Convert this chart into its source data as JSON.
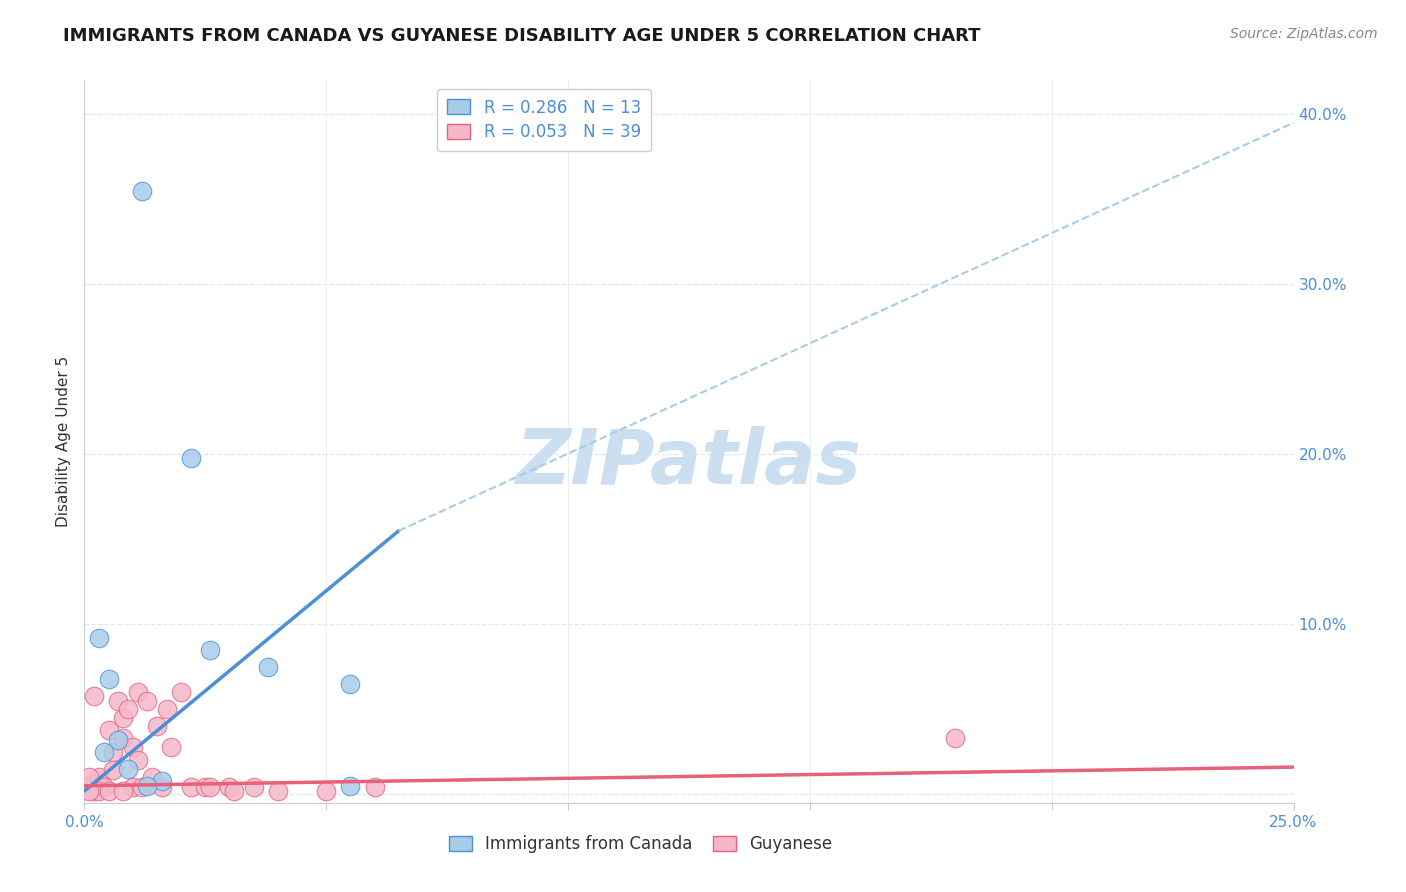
{
  "title": "IMMIGRANTS FROM CANADA VS GUYANESE DISABILITY AGE UNDER 5 CORRELATION CHART",
  "source": "Source: ZipAtlas.com",
  "xlabel_label": "Immigrants from Canada",
  "ylabel_label": "Disability Age Under 5",
  "xlim": [
    0.0,
    0.25
  ],
  "ylim": [
    -0.005,
    0.42
  ],
  "blue_R": "0.286",
  "blue_N": "13",
  "pink_R": "0.053",
  "pink_N": "39",
  "blue_color": "#a8cce8",
  "pink_color": "#f5b8cb",
  "blue_line_color": "#4a90d9",
  "pink_line_color": "#e8607a",
  "dashed_line_color": "#a8cce8",
  "watermark": "ZIPatlas",
  "watermark_color": "#ccdff0",
  "blue_points": [
    [
      0.012,
      0.355
    ],
    [
      0.022,
      0.198
    ],
    [
      0.003,
      0.092
    ],
    [
      0.005,
      0.068
    ],
    [
      0.007,
      0.032
    ],
    [
      0.004,
      0.025
    ],
    [
      0.009,
      0.015
    ],
    [
      0.016,
      0.008
    ],
    [
      0.026,
      0.085
    ],
    [
      0.038,
      0.075
    ],
    [
      0.055,
      0.065
    ],
    [
      0.055,
      0.005
    ],
    [
      0.013,
      0.005
    ]
  ],
  "pink_points": [
    [
      0.001,
      0.005
    ],
    [
      0.002,
      0.002
    ],
    [
      0.003,
      0.01
    ],
    [
      0.004,
      0.004
    ],
    [
      0.005,
      0.038
    ],
    [
      0.006,
      0.025
    ],
    [
      0.006,
      0.014
    ],
    [
      0.007,
      0.055
    ],
    [
      0.008,
      0.045
    ],
    [
      0.008,
      0.033
    ],
    [
      0.009,
      0.05
    ],
    [
      0.01,
      0.028
    ],
    [
      0.01,
      0.004
    ],
    [
      0.011,
      0.06
    ],
    [
      0.011,
      0.02
    ],
    [
      0.012,
      0.004
    ],
    [
      0.013,
      0.055
    ],
    [
      0.014,
      0.01
    ],
    [
      0.015,
      0.04
    ],
    [
      0.016,
      0.004
    ],
    [
      0.017,
      0.05
    ],
    [
      0.018,
      0.028
    ],
    [
      0.02,
      0.06
    ],
    [
      0.022,
      0.004
    ],
    [
      0.025,
      0.004
    ],
    [
      0.026,
      0.004
    ],
    [
      0.03,
      0.004
    ],
    [
      0.031,
      0.002
    ],
    [
      0.035,
      0.004
    ],
    [
      0.04,
      0.002
    ],
    [
      0.05,
      0.002
    ],
    [
      0.06,
      0.004
    ],
    [
      0.003,
      0.002
    ],
    [
      0.18,
      0.033
    ],
    [
      0.001,
      0.002
    ],
    [
      0.001,
      0.01
    ],
    [
      0.002,
      0.058
    ],
    [
      0.005,
      0.002
    ],
    [
      0.008,
      0.002
    ]
  ],
  "blue_line_x": [
    0.0,
    0.065
  ],
  "blue_line_y": [
    0.002,
    0.155
  ],
  "dashed_line_x": [
    0.065,
    0.25
  ],
  "dashed_line_y": [
    0.155,
    0.395
  ],
  "pink_line_x": [
    0.0,
    0.25
  ],
  "pink_line_y": [
    0.005,
    0.016
  ],
  "title_fontsize": 13,
  "tick_fontsize": 11,
  "axis_label_fontsize": 11,
  "legend_fontsize": 12,
  "source_fontsize": 10,
  "background_color": "#ffffff",
  "grid_color": "#dce8f0",
  "tick_color": "#4a90d9"
}
